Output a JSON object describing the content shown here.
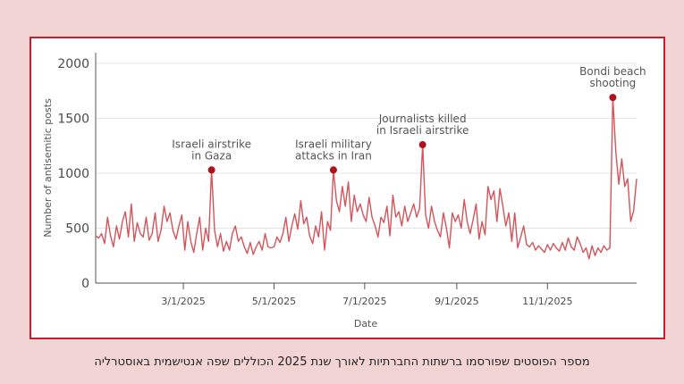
{
  "caption": "מספר הפוסטים שפורסמו ברשתות החברתיות לאורך שנת 2025 הכוללים שפה אנטישמית באוסטרליה",
  "colors": {
    "line": "#d3545a",
    "marker": "#b0101c",
    "frame": "#c61e2a",
    "grid": "#e3e3e3",
    "background": "#f3d4d4"
  },
  "chart_data": {
    "type": "line",
    "ylabel": "Number of antisemitic posts",
    "xlabel": "Date",
    "ylim": [
      0,
      2000
    ],
    "xlim": [
      "2025-01-01",
      "2025-12-31"
    ],
    "yticks": [
      "0",
      "500",
      "1000",
      "1500",
      "2000"
    ],
    "xticks": [
      {
        "date": "2025-03-01",
        "label": "3/1/2025"
      },
      {
        "date": "2025-05-01",
        "label": "5/1/2025"
      },
      {
        "date": "2025-07-01",
        "label": "7/1/2025"
      },
      {
        "date": "2025-09-01",
        "label": "9/1/2025"
      },
      {
        "date": "2025-11-01",
        "label": "11/1/2025"
      }
    ],
    "grid": "horizontal",
    "series": [
      {
        "points": [
          [
            "2025-01-01",
            430
          ],
          [
            "2025-01-03",
            410
          ],
          [
            "2025-01-05",
            450
          ],
          [
            "2025-01-07",
            360
          ],
          [
            "2025-01-09",
            600
          ],
          [
            "2025-01-11",
            430
          ],
          [
            "2025-01-13",
            330
          ],
          [
            "2025-01-15",
            520
          ],
          [
            "2025-01-17",
            400
          ],
          [
            "2025-01-19",
            560
          ],
          [
            "2025-01-21",
            650
          ],
          [
            "2025-01-23",
            420
          ],
          [
            "2025-01-25",
            720
          ],
          [
            "2025-01-27",
            380
          ],
          [
            "2025-01-29",
            550
          ],
          [
            "2025-01-31",
            450
          ],
          [
            "2025-02-02",
            420
          ],
          [
            "2025-02-04",
            600
          ],
          [
            "2025-02-06",
            390
          ],
          [
            "2025-02-08",
            450
          ],
          [
            "2025-02-10",
            640
          ],
          [
            "2025-02-12",
            380
          ],
          [
            "2025-02-14",
            480
          ],
          [
            "2025-02-16",
            700
          ],
          [
            "2025-02-18",
            560
          ],
          [
            "2025-02-20",
            640
          ],
          [
            "2025-02-22",
            480
          ],
          [
            "2025-02-24",
            400
          ],
          [
            "2025-02-26",
            520
          ],
          [
            "2025-02-28",
            620
          ],
          [
            "2025-03-02",
            300
          ],
          [
            "2025-03-04",
            560
          ],
          [
            "2025-03-06",
            380
          ],
          [
            "2025-03-08",
            280
          ],
          [
            "2025-03-10",
            450
          ],
          [
            "2025-03-12",
            600
          ],
          [
            "2025-03-14",
            300
          ],
          [
            "2025-03-16",
            500
          ],
          [
            "2025-03-18",
            380
          ],
          [
            "2025-03-20",
            1030
          ],
          [
            "2025-03-22",
            480
          ],
          [
            "2025-03-24",
            330
          ],
          [
            "2025-03-26",
            450
          ],
          [
            "2025-03-28",
            290
          ],
          [
            "2025-03-30",
            380
          ],
          [
            "2025-04-01",
            300
          ],
          [
            "2025-04-03",
            450
          ],
          [
            "2025-04-05",
            520
          ],
          [
            "2025-04-07",
            380
          ],
          [
            "2025-04-09",
            420
          ],
          [
            "2025-04-11",
            330
          ],
          [
            "2025-04-13",
            270
          ],
          [
            "2025-04-15",
            370
          ],
          [
            "2025-04-17",
            260
          ],
          [
            "2025-04-19",
            330
          ],
          [
            "2025-04-21",
            380
          ],
          [
            "2025-04-23",
            300
          ],
          [
            "2025-04-25",
            450
          ],
          [
            "2025-04-27",
            330
          ],
          [
            "2025-04-29",
            320
          ],
          [
            "2025-05-01",
            330
          ],
          [
            "2025-05-03",
            420
          ],
          [
            "2025-05-05",
            370
          ],
          [
            "2025-05-07",
            450
          ],
          [
            "2025-05-09",
            600
          ],
          [
            "2025-05-11",
            380
          ],
          [
            "2025-05-13",
            520
          ],
          [
            "2025-05-15",
            630
          ],
          [
            "2025-05-17",
            490
          ],
          [
            "2025-05-19",
            750
          ],
          [
            "2025-05-21",
            540
          ],
          [
            "2025-05-23",
            600
          ],
          [
            "2025-05-25",
            430
          ],
          [
            "2025-05-27",
            360
          ],
          [
            "2025-05-29",
            520
          ],
          [
            "2025-05-31",
            420
          ],
          [
            "2025-06-02",
            650
          ],
          [
            "2025-06-04",
            300
          ],
          [
            "2025-06-06",
            560
          ],
          [
            "2025-06-08",
            480
          ],
          [
            "2025-06-10",
            1030
          ],
          [
            "2025-06-12",
            750
          ],
          [
            "2025-06-14",
            650
          ],
          [
            "2025-06-16",
            880
          ],
          [
            "2025-06-18",
            700
          ],
          [
            "2025-06-20",
            920
          ],
          [
            "2025-06-22",
            560
          ],
          [
            "2025-06-24",
            800
          ],
          [
            "2025-06-26",
            650
          ],
          [
            "2025-06-28",
            720
          ],
          [
            "2025-06-30",
            620
          ],
          [
            "2025-07-02",
            560
          ],
          [
            "2025-07-04",
            780
          ],
          [
            "2025-07-06",
            600
          ],
          [
            "2025-07-08",
            520
          ],
          [
            "2025-07-10",
            420
          ],
          [
            "2025-07-12",
            600
          ],
          [
            "2025-07-14",
            550
          ],
          [
            "2025-07-16",
            700
          ],
          [
            "2025-07-18",
            430
          ],
          [
            "2025-07-20",
            800
          ],
          [
            "2025-07-22",
            600
          ],
          [
            "2025-07-24",
            650
          ],
          [
            "2025-07-26",
            520
          ],
          [
            "2025-07-28",
            700
          ],
          [
            "2025-07-30",
            560
          ],
          [
            "2025-08-01",
            640
          ],
          [
            "2025-08-03",
            720
          ],
          [
            "2025-08-05",
            600
          ],
          [
            "2025-08-07",
            680
          ],
          [
            "2025-08-09",
            1260
          ],
          [
            "2025-08-11",
            620
          ],
          [
            "2025-08-13",
            500
          ],
          [
            "2025-08-15",
            700
          ],
          [
            "2025-08-17",
            560
          ],
          [
            "2025-08-19",
            480
          ],
          [
            "2025-08-21",
            420
          ],
          [
            "2025-08-23",
            640
          ],
          [
            "2025-08-25",
            500
          ],
          [
            "2025-08-27",
            320
          ],
          [
            "2025-08-29",
            640
          ],
          [
            "2025-08-31",
            560
          ],
          [
            "2025-09-02",
            620
          ],
          [
            "2025-09-04",
            500
          ],
          [
            "2025-09-06",
            760
          ],
          [
            "2025-09-08",
            560
          ],
          [
            "2025-09-10",
            450
          ],
          [
            "2025-09-12",
            580
          ],
          [
            "2025-09-14",
            720
          ],
          [
            "2025-09-16",
            400
          ],
          [
            "2025-09-18",
            560
          ],
          [
            "2025-09-20",
            440
          ],
          [
            "2025-09-22",
            880
          ],
          [
            "2025-09-24",
            760
          ],
          [
            "2025-09-26",
            840
          ],
          [
            "2025-09-28",
            560
          ],
          [
            "2025-09-30",
            860
          ],
          [
            "2025-10-02",
            700
          ],
          [
            "2025-10-04",
            520
          ],
          [
            "2025-10-06",
            640
          ],
          [
            "2025-10-08",
            380
          ],
          [
            "2025-10-10",
            640
          ],
          [
            "2025-10-12",
            320
          ],
          [
            "2025-10-14",
            420
          ],
          [
            "2025-10-16",
            520
          ],
          [
            "2025-10-18",
            350
          ],
          [
            "2025-10-20",
            330
          ],
          [
            "2025-10-22",
            370
          ],
          [
            "2025-10-24",
            300
          ],
          [
            "2025-10-26",
            340
          ],
          [
            "2025-10-28",
            310
          ],
          [
            "2025-10-30",
            280
          ],
          [
            "2025-11-01",
            350
          ],
          [
            "2025-11-03",
            300
          ],
          [
            "2025-11-05",
            360
          ],
          [
            "2025-11-07",
            320
          ],
          [
            "2025-11-09",
            290
          ],
          [
            "2025-11-11",
            370
          ],
          [
            "2025-11-13",
            300
          ],
          [
            "2025-11-15",
            410
          ],
          [
            "2025-11-17",
            330
          ],
          [
            "2025-11-19",
            300
          ],
          [
            "2025-11-21",
            420
          ],
          [
            "2025-11-23",
            360
          ],
          [
            "2025-11-25",
            280
          ],
          [
            "2025-11-27",
            320
          ],
          [
            "2025-11-29",
            220
          ],
          [
            "2025-12-01",
            340
          ],
          [
            "2025-12-03",
            250
          ],
          [
            "2025-12-05",
            320
          ],
          [
            "2025-12-07",
            280
          ],
          [
            "2025-12-09",
            340
          ],
          [
            "2025-12-11",
            300
          ],
          [
            "2025-12-13",
            320
          ],
          [
            "2025-12-15",
            1690
          ],
          [
            "2025-12-17",
            1200
          ],
          [
            "2025-12-19",
            900
          ],
          [
            "2025-12-21",
            1130
          ],
          [
            "2025-12-23",
            880
          ],
          [
            "2025-12-25",
            950
          ],
          [
            "2025-12-27",
            560
          ],
          [
            "2025-12-29",
            660
          ],
          [
            "2025-12-31",
            950
          ]
        ]
      }
    ],
    "annotations": [
      {
        "date": "2025-03-20",
        "value": 1030,
        "lines": [
          "Israeli airstrike",
          "in Gaza"
        ]
      },
      {
        "date": "2025-06-10",
        "value": 1030,
        "lines": [
          "Israeli military",
          "attacks in Iran"
        ]
      },
      {
        "date": "2025-08-09",
        "value": 1260,
        "lines": [
          "Journalists killed",
          "in Israeli airstrike"
        ]
      },
      {
        "date": "2025-12-15",
        "value": 1690,
        "lines": [
          "Bondi beach",
          "shooting"
        ]
      }
    ]
  }
}
